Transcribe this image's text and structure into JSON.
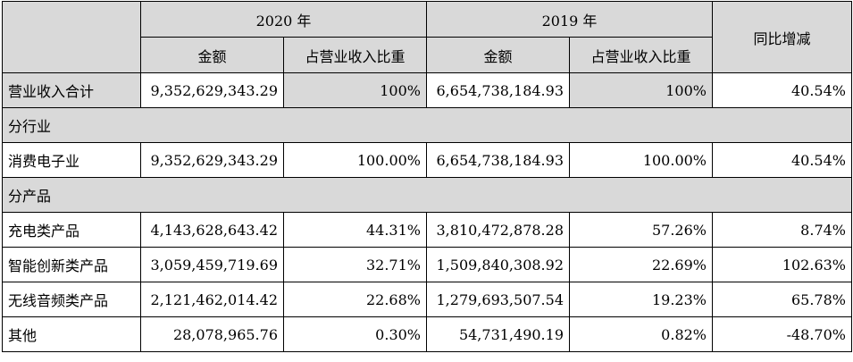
{
  "header": {
    "year_2020": "2020 年",
    "year_2019": "2019 年",
    "yoy": "同比增减",
    "amount_2020": "金额",
    "ratio_2020": "占营业收入比重",
    "amount_2019": "金额",
    "ratio_2019": "占营业收入比重"
  },
  "rows": [
    {
      "type": "data",
      "shaded": true,
      "label": "营业收入合计",
      "amount_2020": "9,352,629,343.29",
      "ratio_2020": "100%",
      "amount_2019": "6,654,738,184.93",
      "ratio_2019": "100%",
      "yoy": "40.54%"
    },
    {
      "type": "section",
      "label": "分行业"
    },
    {
      "type": "data",
      "shaded": false,
      "label": "消费电子业",
      "amount_2020": "9,352,629,343.29",
      "ratio_2020": "100.00%",
      "amount_2019": "6,654,738,184.93",
      "ratio_2019": "100.00%",
      "yoy": "40.54%"
    },
    {
      "type": "section",
      "label": "分产品"
    },
    {
      "type": "data",
      "shaded": false,
      "label": "充电类产品",
      "amount_2020": "4,143,628,643.42",
      "ratio_2020": "44.31%",
      "amount_2019": "3,810,472,878.28",
      "ratio_2019": "57.26%",
      "yoy": "8.74%"
    },
    {
      "type": "data",
      "shaded": false,
      "label": "智能创新类产品",
      "amount_2020": "3,059,459,719.69",
      "ratio_2020": "32.71%",
      "amount_2019": "1,509,840,308.92",
      "ratio_2019": "22.69%",
      "yoy": "102.63%"
    },
    {
      "type": "data",
      "shaded": false,
      "label": "无线音频类产品",
      "amount_2020": "2,121,462,014.42",
      "ratio_2020": "22.68%",
      "amount_2019": "1,279,693,507.54",
      "ratio_2019": "19.23%",
      "yoy": "65.78%"
    },
    {
      "type": "data",
      "shaded": false,
      "label": "其他",
      "amount_2020": "28,078,965.76",
      "ratio_2020": "0.30%",
      "amount_2019": "54,731,490.19",
      "ratio_2019": "0.82%",
      "yoy": "-48.70%"
    }
  ]
}
